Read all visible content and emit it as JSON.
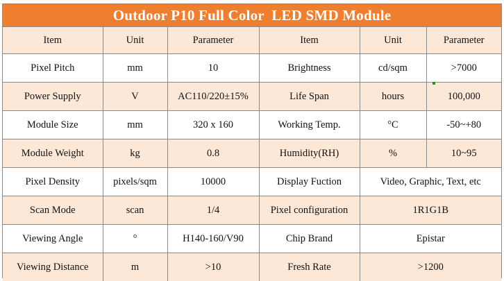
{
  "title": "Outdoor P10 Full Color  LED SMD Module",
  "headers": [
    "Item",
    "Unit",
    "Parameter",
    "Item",
    "Unit",
    "Parameter"
  ],
  "rows": [
    {
      "item_l": "Pixel Pitch",
      "unit_l": "mm",
      "param_l": "10",
      "item_r": "Brightness",
      "unit_r": "cd/sqm",
      "param_r": ">7000"
    },
    {
      "item_l": "Power Supply",
      "unit_l": "V",
      "param_l": "AC110/220±15%",
      "item_r": "Life Span",
      "unit_r": "hours",
      "param_r": "100,000"
    },
    {
      "item_l": "Module Size",
      "unit_l": "mm",
      "param_l": "320 x 160",
      "item_r": "Working Temp.",
      "unit_r": "°C",
      "param_r": "-50~+80"
    },
    {
      "item_l": "Module Weight",
      "unit_l": "kg",
      "param_l": "0.8",
      "item_r": "Humidity(RH)",
      "unit_r": "%",
      "param_r": "10~95"
    },
    {
      "item_l": "Pixel Density",
      "unit_l": "pixels/sqm",
      "param_l": "10000",
      "item_r": "Display Fuction",
      "value_r": "Video, Graphic, Text, etc"
    },
    {
      "item_l": "Scan Mode",
      "unit_l": "scan",
      "param_l": "1/4",
      "item_r": "Pixel configuration",
      "value_r": "1R1G1B"
    },
    {
      "item_l": "Viewing Angle",
      "unit_l": "°",
      "param_l": "H140-160/V90",
      "item_r": "Chip Brand",
      "value_r": "Epistar"
    },
    {
      "item_l": "Viewing Distance",
      "unit_l": "m",
      "param_l": ">10",
      "item_r": "Fresh Rate",
      "value_r": ">1200"
    }
  ],
  "colors": {
    "title_bg": "#f07e2f",
    "title_text": "#ffffff",
    "row_tint": "#fde8d8",
    "border": "#8a8a8a"
  }
}
